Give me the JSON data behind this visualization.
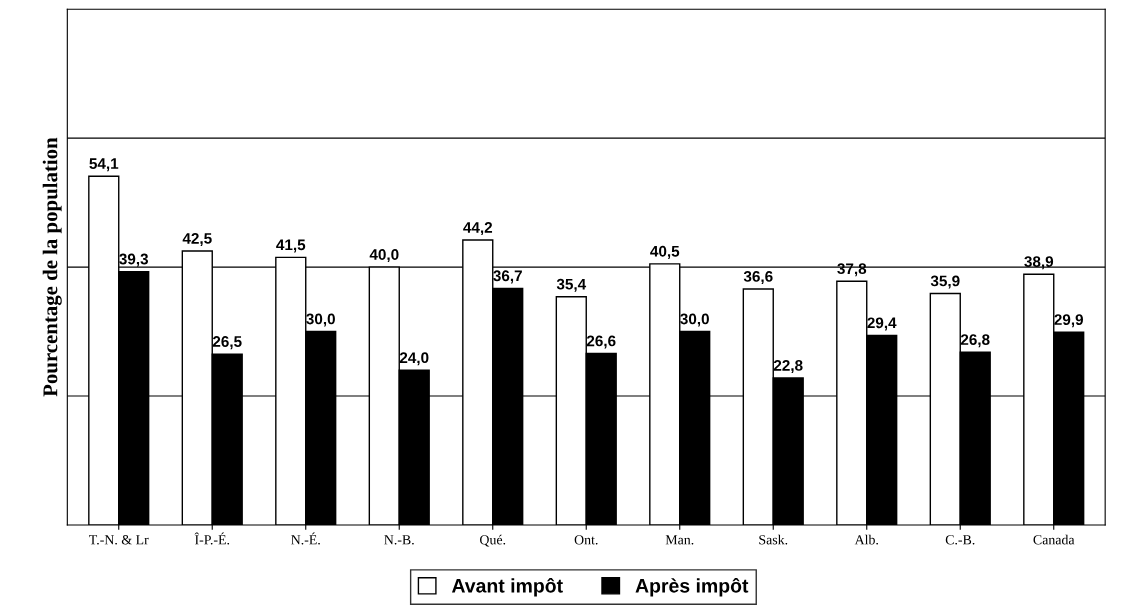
{
  "chart_data": {
    "type": "bar",
    "ylabel": "Pourcentage de la population",
    "categories": [
      "T.-N. & Lr",
      "Î-P.-É.",
      "N.-É.",
      "N.-B.",
      "Qué.",
      "Ont.",
      "Man.",
      "Sask.",
      "Alb.",
      "C.-B.",
      "Canada"
    ],
    "series": [
      {
        "name": "Avant impôt",
        "color": "#ffffff",
        "values": [
          54.1,
          42.5,
          41.5,
          40.0,
          44.2,
          35.4,
          40.5,
          36.6,
          37.8,
          35.9,
          38.9
        ],
        "value_labels": [
          "54,1",
          "42,5",
          "41,5",
          "40,0",
          "44,2",
          "35,4",
          "40,5",
          "36,6",
          "37,8",
          "35,9",
          "38,9"
        ]
      },
      {
        "name": "Après impôt",
        "color": "#000000",
        "values": [
          39.3,
          26.5,
          30.0,
          24.0,
          36.7,
          26.6,
          30.0,
          22.8,
          29.4,
          26.8,
          29.9
        ],
        "value_labels": [
          "39,3",
          "26,5",
          "30,0",
          "24,0",
          "36,7",
          "26,6",
          "30,0",
          "22,8",
          "29,4",
          "26,8",
          "29,9"
        ]
      }
    ],
    "ylim": [
      0,
      80
    ],
    "yticks": [
      {
        "value": 20,
        "label": null
      },
      {
        "value": 40,
        "label": null
      },
      {
        "value": 60,
        "label": null
      }
    ],
    "tick_labels": "x",
    "grid": "y",
    "legend": "bottom"
  }
}
